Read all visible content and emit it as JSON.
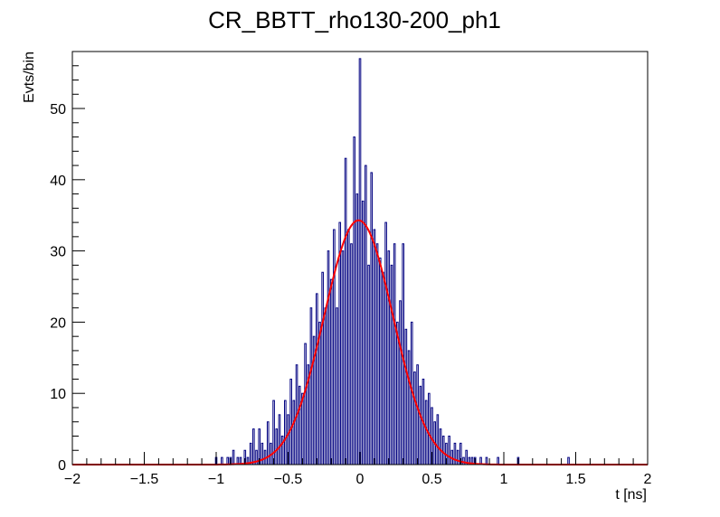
{
  "chart_data": {
    "type": "histogram",
    "title": "CR_BBTT_rho130-200_ph1",
    "xlabel": "t [ns]",
    "ylabel": "Evts/bin",
    "xlim": [
      -2,
      2
    ],
    "ylim": [
      0,
      58
    ],
    "xticks": [
      -2,
      -1.5,
      -1,
      -0.5,
      0,
      0.5,
      1,
      1.5,
      2
    ],
    "xtick_labels": [
      "−2",
      "−1.5",
      "−1",
      "−0.5",
      "0",
      "0.5",
      "1",
      "1.5",
      "2"
    ],
    "yticks": [
      0,
      10,
      20,
      30,
      40,
      50
    ],
    "ytick_labels": [
      "0",
      "10",
      "20",
      "30",
      "40",
      "50"
    ],
    "grid": false,
    "series": [
      {
        "kind": "histogram",
        "color": "#000080",
        "bin_width": 0.01,
        "bins": [
          [
            -1.0,
            1
          ],
          [
            -0.96,
            1
          ],
          [
            -0.92,
            1
          ],
          [
            -0.9,
            1
          ],
          [
            -0.88,
            2
          ],
          [
            -0.85,
            1
          ],
          [
            -0.83,
            1
          ],
          [
            -0.8,
            2
          ],
          [
            -0.78,
            1
          ],
          [
            -0.76,
            3
          ],
          [
            -0.74,
            5
          ],
          [
            -0.72,
            2
          ],
          [
            -0.7,
            5
          ],
          [
            -0.68,
            3
          ],
          [
            -0.66,
            2
          ],
          [
            -0.64,
            6
          ],
          [
            -0.62,
            3
          ],
          [
            -0.6,
            9
          ],
          [
            -0.58,
            5
          ],
          [
            -0.56,
            7
          ],
          [
            -0.54,
            4
          ],
          [
            -0.52,
            9
          ],
          [
            -0.5,
            7
          ],
          [
            -0.48,
            12
          ],
          [
            -0.46,
            9
          ],
          [
            -0.44,
            14
          ],
          [
            -0.42,
            11
          ],
          [
            -0.4,
            10
          ],
          [
            -0.38,
            17
          ],
          [
            -0.36,
            14
          ],
          [
            -0.34,
            22
          ],
          [
            -0.32,
            18
          ],
          [
            -0.3,
            24
          ],
          [
            -0.28,
            20
          ],
          [
            -0.26,
            27
          ],
          [
            -0.24,
            22
          ],
          [
            -0.22,
            30
          ],
          [
            -0.2,
            26
          ],
          [
            -0.18,
            33
          ],
          [
            -0.16,
            22
          ],
          [
            -0.14,
            34
          ],
          [
            -0.12,
            30
          ],
          [
            -0.1,
            43
          ],
          [
            -0.08,
            33
          ],
          [
            -0.06,
            31
          ],
          [
            -0.04,
            46
          ],
          [
            -0.02,
            38
          ],
          [
            0.0,
            57
          ],
          [
            0.02,
            37
          ],
          [
            0.04,
            42
          ],
          [
            0.06,
            28
          ],
          [
            0.08,
            41
          ],
          [
            0.1,
            33
          ],
          [
            0.12,
            31
          ],
          [
            0.14,
            29
          ],
          [
            0.16,
            27
          ],
          [
            0.18,
            34
          ],
          [
            0.2,
            30
          ],
          [
            0.22,
            28
          ],
          [
            0.24,
            31
          ],
          [
            0.26,
            20
          ],
          [
            0.28,
            23
          ],
          [
            0.3,
            31
          ],
          [
            0.32,
            19
          ],
          [
            0.34,
            16
          ],
          [
            0.36,
            20
          ],
          [
            0.38,
            13
          ],
          [
            0.4,
            14
          ],
          [
            0.42,
            11
          ],
          [
            0.44,
            12
          ],
          [
            0.46,
            9
          ],
          [
            0.48,
            10
          ],
          [
            0.5,
            8
          ],
          [
            0.52,
            6
          ],
          [
            0.54,
            7
          ],
          [
            0.56,
            5
          ],
          [
            0.58,
            4
          ],
          [
            0.6,
            3
          ],
          [
            0.62,
            4
          ],
          [
            0.64,
            2
          ],
          [
            0.66,
            3
          ],
          [
            0.68,
            2
          ],
          [
            0.7,
            3
          ],
          [
            0.72,
            1
          ],
          [
            0.74,
            2
          ],
          [
            0.76,
            1
          ],
          [
            0.78,
            1
          ],
          [
            0.8,
            1
          ],
          [
            0.84,
            1
          ],
          [
            0.88,
            1
          ],
          [
            0.96,
            1
          ],
          [
            1.1,
            1
          ],
          [
            1.45,
            1
          ]
        ]
      },
      {
        "kind": "gaussian-fit",
        "color": "#ff0000",
        "amplitude": 34.3,
        "mean": -0.01,
        "sigma": 0.24
      }
    ]
  }
}
